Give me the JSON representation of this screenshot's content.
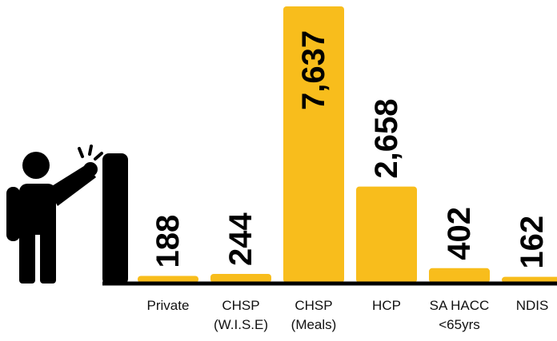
{
  "chart_data": {
    "type": "bar",
    "categories": [
      "Private",
      "CHSP (W.I.S.E)",
      "CHSP (Meals)",
      "HCP",
      "SA HACC <65yrs",
      "NDIS"
    ],
    "values": [
      188,
      244,
      7637,
      2658,
      402,
      162
    ],
    "value_labels": [
      "188",
      "244",
      "7,637",
      "2,658",
      "402",
      "162"
    ],
    "color": "#f8bd1c"
  }
}
